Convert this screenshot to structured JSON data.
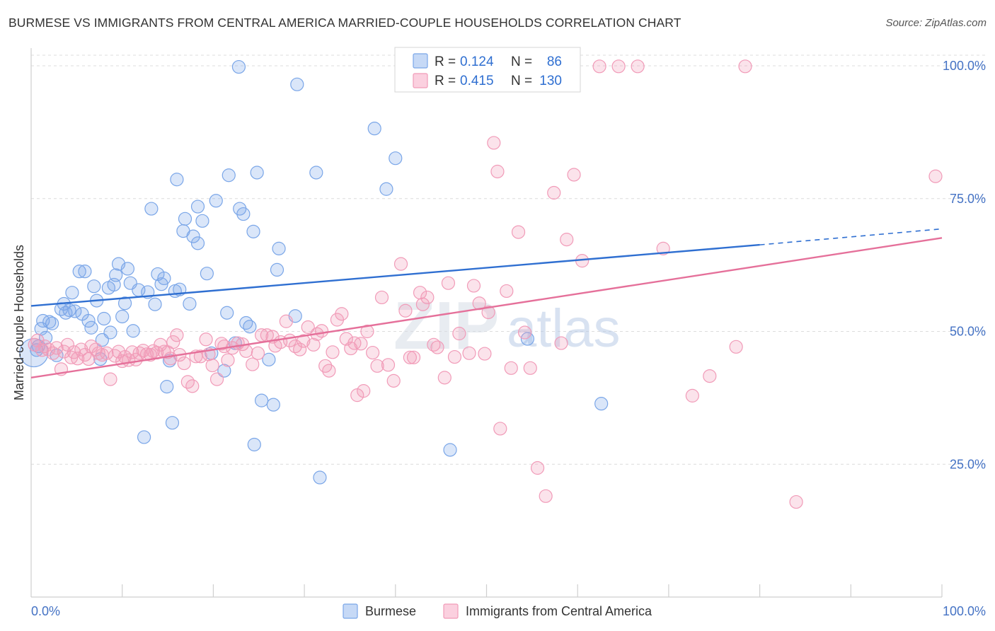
{
  "title": "BURMESE VS IMMIGRANTS FROM CENTRAL AMERICA MARRIED-COUPLE HOUSEHOLDS CORRELATION CHART",
  "source": "Source: ZipAtlas.com",
  "watermark": {
    "zip": "ZIP",
    "atlas": "atlas"
  },
  "legend_top": {
    "rows": [
      {
        "r_label": "R =",
        "r_value": "0.124",
        "n_label": "N =",
        "n_value": "86",
        "color": "#7aa6e8"
      },
      {
        "r_label": "R =",
        "r_value": "0.415",
        "n_label": "N =",
        "n_value": "130",
        "color": "#f19bb8"
      }
    ]
  },
  "chart_data": {
    "type": "scatter",
    "title": "BURMESE VS IMMIGRANTS FROM CENTRAL AMERICA MARRIED-COUPLE HOUSEHOLDS CORRELATION CHART",
    "xlabel": "",
    "ylabel": "Married-couple Households",
    "xlim": [
      0,
      100
    ],
    "ylim": [
      0,
      104
    ],
    "x_tick_labels": [
      "0.0%",
      "100.0%"
    ],
    "y_ticks": [
      25,
      50,
      75,
      100
    ],
    "y_tick_labels": [
      "25.0%",
      "50.0%",
      "75.0%",
      "100.0%"
    ],
    "grid": "horizontal dashed",
    "legend_placement": "top-center and bottom",
    "series": [
      {
        "name": "Burmese",
        "color": "#7aa6e8",
        "trend": {
          "x": [
            0,
            80
          ],
          "y": [
            54.8,
            66.3
          ],
          "dashed_extension_to_x": 100,
          "dashed_y": 69.3
        },
        "points": [
          [
            0.3,
            46.0
          ],
          [
            0.6,
            46.5
          ],
          [
            0.8,
            47.2
          ],
          [
            1.1,
            50.5
          ],
          [
            1.3,
            52.0
          ],
          [
            1.6,
            48.8
          ],
          [
            2.0,
            51.8
          ],
          [
            2.3,
            51.5
          ],
          [
            2.8,
            45.5
          ],
          [
            3.3,
            54.2
          ],
          [
            3.6,
            55.2
          ],
          [
            3.8,
            53.5
          ],
          [
            4.2,
            54.0
          ],
          [
            4.5,
            57.3
          ],
          [
            4.8,
            53.8
          ],
          [
            5.3,
            61.3
          ],
          [
            5.6,
            53.3
          ],
          [
            5.9,
            61.3
          ],
          [
            6.3,
            52.0
          ],
          [
            6.6,
            50.7
          ],
          [
            6.9,
            58.5
          ],
          [
            7.2,
            55.8
          ],
          [
            7.6,
            44.8
          ],
          [
            7.8,
            48.4
          ],
          [
            8.0,
            52.4
          ],
          [
            8.5,
            58.2
          ],
          [
            8.7,
            49.8
          ],
          [
            9.1,
            58.8
          ],
          [
            9.3,
            60.6
          ],
          [
            9.6,
            62.7
          ],
          [
            10.0,
            52.8
          ],
          [
            10.3,
            55.3
          ],
          [
            10.6,
            61.8
          ],
          [
            10.9,
            59.1
          ],
          [
            11.2,
            50.1
          ],
          [
            11.8,
            57.8
          ],
          [
            12.4,
            30.1
          ],
          [
            12.8,
            57.4
          ],
          [
            13.2,
            73.1
          ],
          [
            13.6,
            55.1
          ],
          [
            13.9,
            60.8
          ],
          [
            14.3,
            58.9
          ],
          [
            14.6,
            60.0
          ],
          [
            14.9,
            39.6
          ],
          [
            15.2,
            44.5
          ],
          [
            15.5,
            32.8
          ],
          [
            15.8,
            57.6
          ],
          [
            16.0,
            78.6
          ],
          [
            16.3,
            57.9
          ],
          [
            16.7,
            68.9
          ],
          [
            16.9,
            71.2
          ],
          [
            17.4,
            55.2
          ],
          [
            17.8,
            67.9
          ],
          [
            18.3,
            66.6
          ],
          [
            18.3,
            73.5
          ],
          [
            18.8,
            70.8
          ],
          [
            19.3,
            60.9
          ],
          [
            19.8,
            45.9
          ],
          [
            20.3,
            74.6
          ],
          [
            21.2,
            42.6
          ],
          [
            21.5,
            53.5
          ],
          [
            21.7,
            79.4
          ],
          [
            22.4,
            47.8
          ],
          [
            22.8,
            99.8
          ],
          [
            22.9,
            73.1
          ],
          [
            23.3,
            72.1
          ],
          [
            23.6,
            51.6
          ],
          [
            24.0,
            50.9
          ],
          [
            24.4,
            68.8
          ],
          [
            24.5,
            28.7
          ],
          [
            24.8,
            79.9
          ],
          [
            25.3,
            37.0
          ],
          [
            26.1,
            44.7
          ],
          [
            26.6,
            36.2
          ],
          [
            27.0,
            61.6
          ],
          [
            27.2,
            65.6
          ],
          [
            29.0,
            52.9
          ],
          [
            29.2,
            96.5
          ],
          [
            31.3,
            79.9
          ],
          [
            31.7,
            22.5
          ],
          [
            37.7,
            88.2
          ],
          [
            39.0,
            76.8
          ],
          [
            40.0,
            82.6
          ],
          [
            46.0,
            27.7
          ],
          [
            54.5,
            48.6
          ],
          [
            62.6,
            36.4
          ]
        ]
      },
      {
        "name": "Immigrants from Central America",
        "color": "#f19bb8",
        "trend": {
          "x": [
            0,
            100
          ],
          "y": [
            41.3,
            67.6
          ]
        },
        "points": [
          [
            0.4,
            47.5
          ],
          [
            0.7,
            48.3
          ],
          [
            1.2,
            46.5
          ],
          [
            1.5,
            47.2
          ],
          [
            1.9,
            46.6
          ],
          [
            2.4,
            45.9
          ],
          [
            2.8,
            46.9
          ],
          [
            3.3,
            42.9
          ],
          [
            3.6,
            46.2
          ],
          [
            4.0,
            47.5
          ],
          [
            4.4,
            45.1
          ],
          [
            4.7,
            46.1
          ],
          [
            5.1,
            44.9
          ],
          [
            5.5,
            46.6
          ],
          [
            5.9,
            45.6
          ],
          [
            6.3,
            44.8
          ],
          [
            6.6,
            47.2
          ],
          [
            7.1,
            46.6
          ],
          [
            7.4,
            45.9
          ],
          [
            7.8,
            45.6
          ],
          [
            8.3,
            45.9
          ],
          [
            8.7,
            41.0
          ],
          [
            9.2,
            45.4
          ],
          [
            9.6,
            46.2
          ],
          [
            10.0,
            44.4
          ],
          [
            10.3,
            45.2
          ],
          [
            10.7,
            44.6
          ],
          [
            11.1,
            46.1
          ],
          [
            11.5,
            44.7
          ],
          [
            11.9,
            45.9
          ],
          [
            12.3,
            46.4
          ],
          [
            12.7,
            45.7
          ],
          [
            13.1,
            45.6
          ],
          [
            13.4,
            46.3
          ],
          [
            13.8,
            46.0
          ],
          [
            14.2,
            47.5
          ],
          [
            14.6,
            46.2
          ],
          [
            15.0,
            46.1
          ],
          [
            15.3,
            44.9
          ],
          [
            15.6,
            48.0
          ],
          [
            16.0,
            49.3
          ],
          [
            16.3,
            45.6
          ],
          [
            16.8,
            44.0
          ],
          [
            17.2,
            40.5
          ],
          [
            17.7,
            39.7
          ],
          [
            18.1,
            45.3
          ],
          [
            18.6,
            45.3
          ],
          [
            19.2,
            48.5
          ],
          [
            19.5,
            45.7
          ],
          [
            19.9,
            43.6
          ],
          [
            20.4,
            41.0
          ],
          [
            20.9,
            47.7
          ],
          [
            21.2,
            47.2
          ],
          [
            21.6,
            44.6
          ],
          [
            22.1,
            46.9
          ],
          [
            22.7,
            47.8
          ],
          [
            23.2,
            47.6
          ],
          [
            23.6,
            46.3
          ],
          [
            24.3,
            43.8
          ],
          [
            24.9,
            45.9
          ],
          [
            25.3,
            49.3
          ],
          [
            25.9,
            49.3
          ],
          [
            26.5,
            49.0
          ],
          [
            26.8,
            47.3
          ],
          [
            27.4,
            48.0
          ],
          [
            28.0,
            51.9
          ],
          [
            28.4,
            48.3
          ],
          [
            29.0,
            47.2
          ],
          [
            29.5,
            46.6
          ],
          [
            29.9,
            48.2
          ],
          [
            30.4,
            50.8
          ],
          [
            31.0,
            47.5
          ],
          [
            31.4,
            49.5
          ],
          [
            31.9,
            50.1
          ],
          [
            32.3,
            43.5
          ],
          [
            32.7,
            42.6
          ],
          [
            33.1,
            46.1
          ],
          [
            33.6,
            52.2
          ],
          [
            34.1,
            53.3
          ],
          [
            34.6,
            48.6
          ],
          [
            35.1,
            46.8
          ],
          [
            35.5,
            47.8
          ],
          [
            35.8,
            38.0
          ],
          [
            36.2,
            47.7
          ],
          [
            36.5,
            38.8
          ],
          [
            36.9,
            50.0
          ],
          [
            37.5,
            46.0
          ],
          [
            38.0,
            43.5
          ],
          [
            38.5,
            56.4
          ],
          [
            39.2,
            43.7
          ],
          [
            39.8,
            40.7
          ],
          [
            40.6,
            62.7
          ],
          [
            41.1,
            53.9
          ],
          [
            41.6,
            45.1
          ],
          [
            42.0,
            45.1
          ],
          [
            42.7,
            57.3
          ],
          [
            43.0,
            55.1
          ],
          [
            43.5,
            56.4
          ],
          [
            44.2,
            47.5
          ],
          [
            44.6,
            47.0
          ],
          [
            45.4,
            41.3
          ],
          [
            45.8,
            59.1
          ],
          [
            46.5,
            45.2
          ],
          [
            47.0,
            49.6
          ],
          [
            48.1,
            45.9
          ],
          [
            48.6,
            58.6
          ],
          [
            49.2,
            55.3
          ],
          [
            49.8,
            45.8
          ],
          [
            50.2,
            53.6
          ],
          [
            50.8,
            85.5
          ],
          [
            51.2,
            80.1
          ],
          [
            51.5,
            31.7
          ],
          [
            52.2,
            57.6
          ],
          [
            52.7,
            43.1
          ],
          [
            53.5,
            68.7
          ],
          [
            54.2,
            49.8
          ],
          [
            54.8,
            43.1
          ],
          [
            55.6,
            24.3
          ],
          [
            56.5,
            19.0
          ],
          [
            57.4,
            76.1
          ],
          [
            58.2,
            47.8
          ],
          [
            58.8,
            67.3
          ],
          [
            59.6,
            79.5
          ],
          [
            60.5,
            63.3
          ],
          [
            62.4,
            99.9
          ],
          [
            64.5,
            99.9
          ],
          [
            66.6,
            99.9
          ],
          [
            69.4,
            65.6
          ],
          [
            72.6,
            37.9
          ],
          [
            74.5,
            41.6
          ],
          [
            77.4,
            47.1
          ],
          [
            78.4,
            99.9
          ],
          [
            84.0,
            17.9
          ],
          [
            99.3,
            79.2
          ]
        ]
      }
    ]
  },
  "bottom_legend": {
    "items": [
      {
        "label": "Burmese",
        "color": "#7aa6e8"
      },
      {
        "label": "Immigrants from Central America",
        "color": "#f19bb8"
      }
    ]
  }
}
